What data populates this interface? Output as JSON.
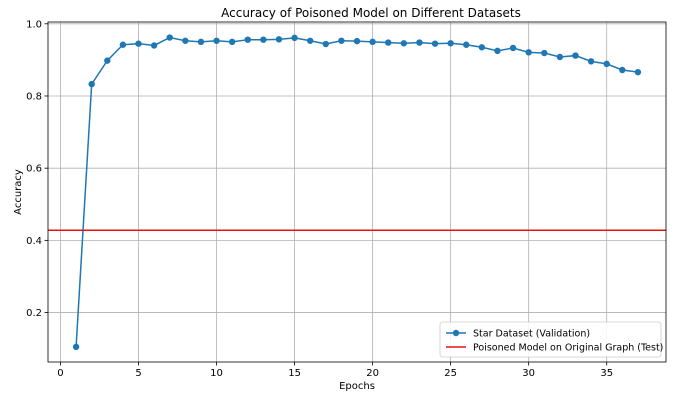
{
  "chart_data": {
    "type": "line",
    "title": "Accuracy of Poisoned Model on Different Datasets",
    "xlabel": "Epochs",
    "ylabel": "Accuracy",
    "xlim": [
      -0.8,
      38.8
    ],
    "ylim": [
      0.063,
      1.005
    ],
    "xticks": [
      0,
      5,
      10,
      15,
      20,
      25,
      30,
      35
    ],
    "yticks": [
      0.2,
      0.4,
      0.6,
      0.8,
      1.0
    ],
    "ytick_labels": [
      "0.2",
      "0.4",
      "0.6",
      "0.8",
      "1.0"
    ],
    "grid": true,
    "legend_position": "lower right",
    "series": [
      {
        "name": "Star Dataset (Validation)",
        "kind": "line-marker",
        "color": "#1f77b4",
        "x": [
          1,
          2,
          3,
          4,
          5,
          6,
          7,
          8,
          9,
          10,
          11,
          12,
          13,
          14,
          15,
          16,
          17,
          18,
          19,
          20,
          21,
          22,
          23,
          24,
          25,
          26,
          27,
          28,
          29,
          30,
          31,
          32,
          33,
          34,
          35,
          36,
          37
        ],
        "y": [
          0.105,
          0.833,
          0.898,
          0.942,
          0.945,
          0.94,
          0.962,
          0.953,
          0.95,
          0.953,
          0.95,
          0.956,
          0.956,
          0.957,
          0.961,
          0.953,
          0.944,
          0.953,
          0.952,
          0.95,
          0.948,
          0.946,
          0.948,
          0.945,
          0.946,
          0.942,
          0.935,
          0.925,
          0.933,
          0.921,
          0.919,
          0.908,
          0.912,
          0.896,
          0.889,
          0.872,
          0.866
        ]
      },
      {
        "name": "Poisoned Model on Original Graph (Test)",
        "kind": "hline",
        "color": "#e8120c",
        "y": 0.428
      }
    ]
  }
}
